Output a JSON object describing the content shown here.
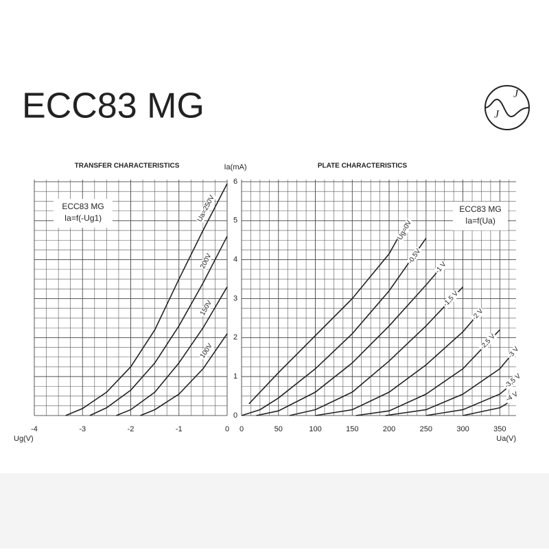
{
  "page_title": "ECC83 MG",
  "logo": [
    "J",
    "J"
  ],
  "chart_data": [
    {
      "type": "line",
      "title": "TRANSFER  CHARACTERISTICS",
      "box_label": [
        "ECC83 MG",
        "Ia=f(-Ug1)"
      ],
      "xlabel": "Ug(V)",
      "ylabel": "Ia(mA)",
      "xlim": [
        -4,
        0
      ],
      "xticks": [
        -4,
        -3,
        -2,
        -1,
        0
      ],
      "ylim": [
        0,
        6
      ],
      "yticks": [
        0,
        1,
        2,
        3,
        4,
        5,
        6
      ],
      "grid": true,
      "color": "#222222",
      "series": [
        {
          "name": "Ua=250V",
          "x": [
            -3.35,
            -3,
            -2.5,
            -2,
            -1.5,
            -1,
            -0.5,
            0
          ],
          "values": [
            0,
            0.18,
            0.6,
            1.25,
            2.2,
            3.5,
            4.75,
            5.95
          ]
        },
        {
          "name": "200V",
          "x": [
            -2.85,
            -2.5,
            -2,
            -1.5,
            -1,
            -0.5,
            0
          ],
          "values": [
            0,
            0.2,
            0.65,
            1.35,
            2.3,
            3.4,
            4.6
          ]
        },
        {
          "name": "150V",
          "x": [
            -2.3,
            -2,
            -1.5,
            -1,
            -0.5,
            0
          ],
          "values": [
            0,
            0.15,
            0.6,
            1.35,
            2.25,
            3.3
          ]
        },
        {
          "name": "100V",
          "x": [
            -1.8,
            -1.5,
            -1,
            -0.5,
            0
          ],
          "values": [
            0,
            0.15,
            0.55,
            1.2,
            2.1
          ]
        }
      ]
    },
    {
      "type": "line",
      "title": "PLATE CHARACTERISTICS",
      "box_label": [
        "ECC83 MG",
        "Ia=f(Ua)"
      ],
      "xlabel": "Ua(V)",
      "xlim": [
        0,
        372
      ],
      "xticks": [
        0,
        50,
        100,
        150,
        200,
        250,
        300,
        350
      ],
      "ylim": [
        0,
        6
      ],
      "grid": true,
      "color": "#222222",
      "series": [
        {
          "name": "Ug=0V",
          "x": [
            10,
            50,
            100,
            150,
            200,
            225
          ],
          "values": [
            0.3,
            1.1,
            2.05,
            3.0,
            4.15,
            5.0
          ]
        },
        {
          "name": "-0,5V",
          "x": [
            0,
            25,
            50,
            100,
            150,
            200,
            250
          ],
          "values": [
            0,
            0.15,
            0.45,
            1.2,
            2.1,
            3.2,
            4.55
          ]
        },
        {
          "name": "-1 V",
          "x": [
            20,
            50,
            100,
            150,
            200,
            250,
            275
          ],
          "values": [
            0,
            0.12,
            0.6,
            1.35,
            2.3,
            3.35,
            3.9
          ]
        },
        {
          "name": "-1,5 V",
          "x": [
            65,
            100,
            150,
            200,
            250,
            300
          ],
          "values": [
            0,
            0.15,
            0.6,
            1.4,
            2.3,
            3.3
          ]
        },
        {
          "name": "-2 V",
          "x": [
            100,
            150,
            200,
            250,
            300,
            325
          ],
          "values": [
            0,
            0.15,
            0.6,
            1.3,
            2.15,
            2.7
          ]
        },
        {
          "name": "-2,5 V",
          "x": [
            155,
            200,
            250,
            300,
            350
          ],
          "values": [
            0,
            0.12,
            0.55,
            1.2,
            2.2
          ]
        },
        {
          "name": "-3 V",
          "x": [
            195,
            250,
            300,
            350,
            372
          ],
          "values": [
            0,
            0.15,
            0.55,
            1.2,
            1.7
          ]
        },
        {
          "name": "-3,5 V",
          "x": [
            250,
            300,
            350,
            372
          ],
          "values": [
            0,
            0.15,
            0.55,
            0.9
          ]
        },
        {
          "name": "-4 V",
          "x": [
            300,
            350,
            372
          ],
          "values": [
            0,
            0.2,
            0.45
          ]
        }
      ]
    }
  ]
}
